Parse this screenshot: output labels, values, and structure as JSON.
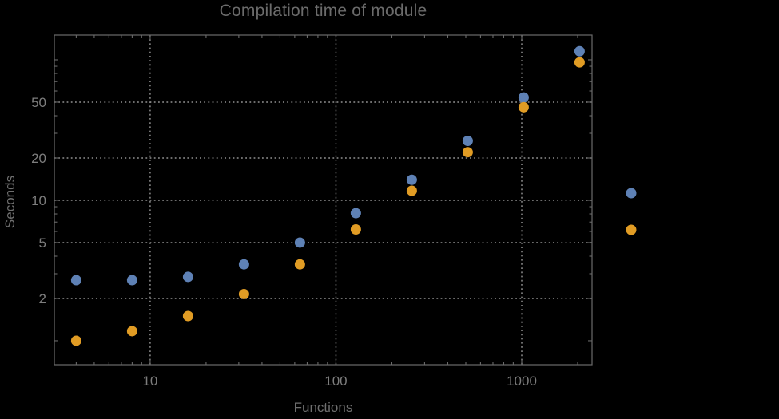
{
  "chart_data": {
    "type": "scatter",
    "title": "Compilation time of module",
    "xlabel": "Functions",
    "ylabel": "Seconds",
    "x_scale": "log",
    "y_scale": "log",
    "xlim": [
      3.05,
      2390
    ],
    "ylim": [
      0.675,
      150
    ],
    "grid": {
      "on": true,
      "style": "dotted",
      "color": "#8f8f8f",
      "x_values": [
        10,
        100,
        1000
      ],
      "y_values": [
        2,
        5,
        10,
        20,
        50
      ]
    },
    "x_ticks": {
      "major": [
        {
          "value": 10,
          "label": "10"
        },
        {
          "value": 100,
          "label": "100"
        },
        {
          "value": 1000,
          "label": "1000"
        }
      ],
      "minor": [
        4,
        5,
        6,
        7,
        8,
        9,
        20,
        30,
        40,
        50,
        60,
        70,
        80,
        90,
        200,
        300,
        400,
        500,
        600,
        700,
        800,
        900,
        2000
      ]
    },
    "y_ticks": {
      "major": [
        {
          "value": 2,
          "label": "2"
        },
        {
          "value": 5,
          "label": "5"
        },
        {
          "value": 10,
          "label": "10"
        },
        {
          "value": 20,
          "label": "20"
        },
        {
          "value": 50,
          "label": "50"
        }
      ],
      "medium": [
        1,
        100
      ],
      "minor": [
        3,
        4,
        6,
        7,
        8,
        9,
        30,
        40,
        60,
        70,
        80,
        90
      ]
    },
    "series": [
      {
        "name": "series-blue",
        "color": "#5E81B5",
        "marker": "circle",
        "x": [
          4,
          8,
          16,
          32,
          64,
          128,
          256,
          512,
          1024,
          2048
        ],
        "y": [
          2.7,
          2.7,
          2.85,
          3.5,
          5.0,
          8.1,
          14.0,
          26.5,
          54,
          115
        ]
      },
      {
        "name": "series-orange",
        "color": "#E19C24",
        "marker": "circle",
        "x": [
          4,
          8,
          16,
          32,
          64,
          128,
          256,
          512,
          1024,
          2048
        ],
        "y": [
          1.0,
          1.17,
          1.5,
          2.15,
          3.5,
          6.2,
          11.7,
          22,
          46,
          96
        ]
      }
    ],
    "legend": {
      "position": "right-of-plot",
      "labels_visible": false,
      "entries": [
        {
          "color": "#5E81B5"
        },
        {
          "color": "#E19C24"
        }
      ]
    },
    "frame_color": "#6a6a6a",
    "tick_label_color": "#7d7d7d",
    "title_color": "#6b6b6b",
    "background": "#000000"
  }
}
